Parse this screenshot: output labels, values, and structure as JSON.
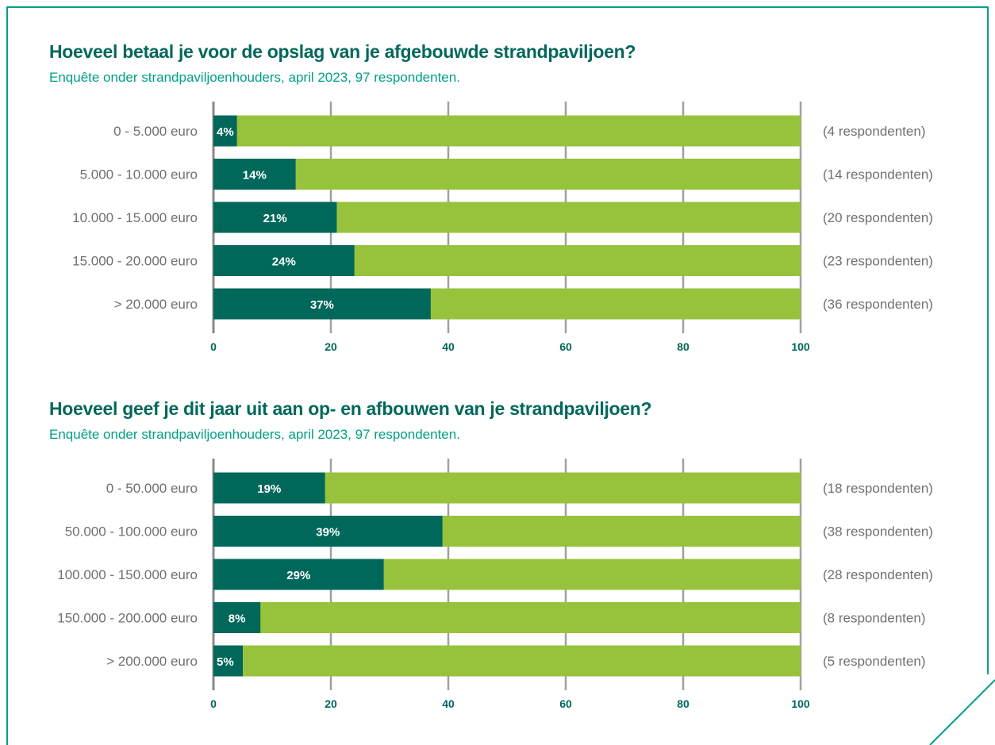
{
  "colors": {
    "frame": "#00a086",
    "title": "#00685a",
    "subtitle": "#00a086",
    "bar_value": "#00685a",
    "bar_rest": "#97c23c",
    "category_text": "#707070",
    "count_text": "#707070",
    "tick_text": "#00685a",
    "gridline": "#a0a0a0"
  },
  "chart_data": [
    {
      "type": "bar",
      "orientation": "horizontal",
      "stacked_to": 100,
      "title": "Hoeveel betaal je voor de opslag van je afgebouwde strandpaviljoen?",
      "subtitle": "Enquête onder strandpaviljoenhouders, april 2023, 97 respondenten.",
      "categories": [
        "0 - 5.000 euro",
        "5.000 - 10.000 euro",
        "10.000 - 15.000 euro",
        "15.000 - 20.000 euro",
        "> 20.000 euro"
      ],
      "values": [
        4,
        14,
        21,
        24,
        37
      ],
      "value_labels": [
        "4%",
        "14%",
        "21%",
        "24%",
        "37%"
      ],
      "counts": [
        "(4 respondenten)",
        "(14 respondenten)",
        "(20 respondenten)",
        "(23 respondenten)",
        "(36 respondenten)"
      ],
      "xlim": [
        0,
        100
      ],
      "xticks": [
        0,
        20,
        40,
        60,
        80,
        100
      ],
      "xtick_labels": [
        "0",
        "20",
        "40",
        "60",
        "80",
        "100"
      ],
      "grid": true
    },
    {
      "type": "bar",
      "orientation": "horizontal",
      "stacked_to": 100,
      "title": "Hoeveel geef je dit jaar uit aan op- en afbouwen van je strandpaviljoen?",
      "subtitle": "Enquête onder strandpaviljoenhouders, april 2023, 97 respondenten.",
      "categories": [
        "0 - 50.000 euro",
        "50.000 - 100.000 euro",
        "100.000 - 150.000 euro",
        "150.000 - 200.000 euro",
        "> 200.000 euro"
      ],
      "values": [
        19,
        39,
        29,
        8,
        5
      ],
      "value_labels": [
        "19%",
        "39%",
        "29%",
        "8%",
        "5%"
      ],
      "counts": [
        "(18 respondenten)",
        "(38 respondenten)",
        "(28 respondenten)",
        "(8 respondenten)",
        "(5 respondenten)"
      ],
      "xlim": [
        0,
        100
      ],
      "xticks": [
        0,
        20,
        40,
        60,
        80,
        100
      ],
      "xtick_labels": [
        "0",
        "20",
        "40",
        "60",
        "80",
        "100"
      ],
      "grid": true
    }
  ]
}
